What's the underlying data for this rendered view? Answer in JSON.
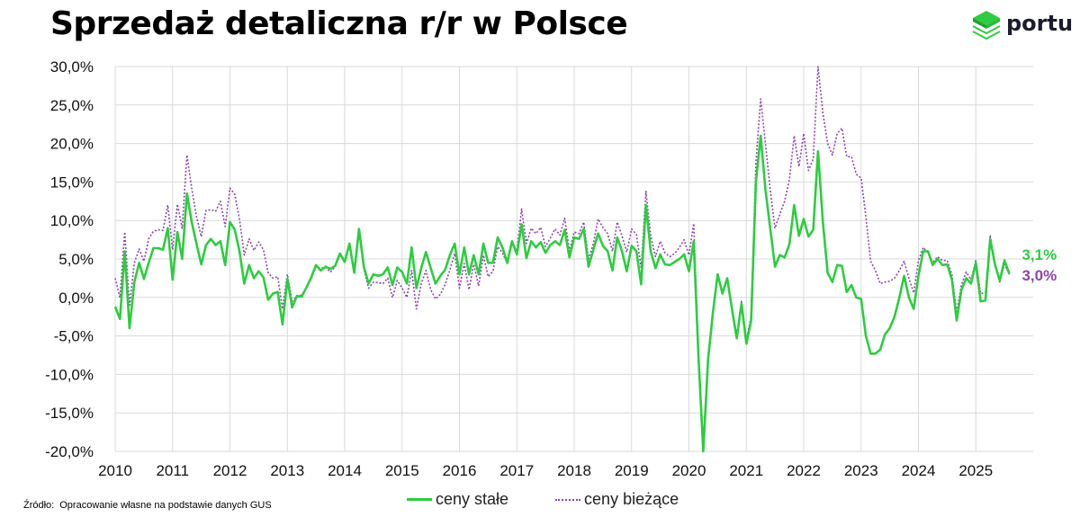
{
  "title": "Sprzedaż detaliczna r/r w Polsce",
  "logo": {
    "text": "portu",
    "icon": "stacked-layers-icon",
    "color": "#2ecc40"
  },
  "source": {
    "label": "Źródło:",
    "text": "Opracowanie własne na podstawie danych GUS"
  },
  "end_labels": {
    "green": "3,1%",
    "purple": "3,0%"
  },
  "colors": {
    "green": "#2ecc40",
    "purple": "#8e44ad",
    "grid": "#d9d9d9"
  },
  "chart_data": {
    "type": "line",
    "title": "Sprzedaż detaliczna r/r w Polsce",
    "xlabel": "",
    "ylabel": "",
    "x_start": "2010-01",
    "x_end": "2025-12",
    "ylim": [
      -20,
      30
    ],
    "yticks": [
      "30,0%",
      "25,0%",
      "20,0%",
      "15,0%",
      "10,0%",
      "5,0%",
      "0,0%",
      "-5,0%",
      "-10,0%",
      "-15,0%",
      "-20,0%"
    ],
    "xticks": [
      "2010",
      "2011",
      "2012",
      "2013",
      "2014",
      "2015",
      "2016",
      "2017",
      "2018",
      "2019",
      "2020",
      "2021",
      "2022",
      "2023",
      "2024",
      "2025"
    ],
    "grid": true,
    "legend_position": "bottom",
    "series": [
      {
        "name": "ceny stałe",
        "style": "solid",
        "color": "#2ecc40",
        "values": [
          -1.2,
          -2.8,
          6.0,
          -4.0,
          2.0,
          4.5,
          2.4,
          4.5,
          6.4,
          6.4,
          6.2,
          9.0,
          2.3,
          8.5,
          5.0,
          13.5,
          9.8,
          7.0,
          4.3,
          6.8,
          7.6,
          6.8,
          7.3,
          4.2,
          9.8,
          8.8,
          6.0,
          1.8,
          4.2,
          2.5,
          3.4,
          2.6,
          -0.3,
          0.5,
          0.7,
          -3.5,
          2.4,
          -1.3,
          0.2,
          0.1,
          1.3,
          2.6,
          4.2,
          3.5,
          4.0,
          3.7,
          4.1,
          5.7,
          4.6,
          7.0,
          3.2,
          8.9,
          4.0,
          1.8,
          3.0,
          2.8,
          3.0,
          3.9,
          1.6,
          3.9,
          3.3,
          1.8,
          6.5,
          1.2,
          3.8,
          5.9,
          3.8,
          1.8,
          2.8,
          3.6,
          5.5,
          7.0,
          3.0,
          6.5,
          3.0,
          5.5,
          3.0,
          7.0,
          4.5,
          4.5,
          7.8,
          6.5,
          4.5,
          7.3,
          5.6,
          9.5,
          5.1,
          7.3,
          6.5,
          7.2,
          5.8,
          6.8,
          7.3,
          6.8,
          8.8,
          5.2,
          7.8,
          7.6,
          8.9,
          4.0,
          6.2,
          8.3,
          6.7,
          6.0,
          3.5,
          7.8,
          6.0,
          3.4,
          6.7,
          6.0,
          1.7,
          12.0,
          6.0,
          3.8,
          5.6,
          4.3,
          4.2,
          4.6,
          5.0,
          5.6,
          3.4,
          7.3,
          -7.7,
          -20.0,
          -8.0,
          -2.0,
          3.0,
          0.5,
          2.5,
          -1.5,
          -5.3,
          -0.8,
          -6.0,
          -3.0,
          15.0,
          21.0,
          14.0,
          9.0,
          4.0,
          5.5,
          5.2,
          6.9,
          12.0,
          8.0,
          10.2,
          7.9,
          8.8,
          19.0,
          9.8,
          3.2,
          2.0,
          4.2,
          4.1,
          0.7,
          1.6,
          0.0,
          -0.2,
          -5.0,
          -7.3,
          -7.3,
          -6.8,
          -4.8,
          -4.0,
          -2.5,
          0.0,
          2.8,
          0.0,
          -1.5,
          2.8,
          6.0,
          6.0,
          4.2,
          5.0,
          4.2,
          4.3,
          2.3,
          -3.0,
          1.0,
          2.5,
          1.8,
          4.5,
          -0.5,
          -0.4,
          7.6,
          4.3,
          2.2,
          4.8,
          3.1
        ]
      },
      {
        "name": "ceny bieżące",
        "style": "dotted",
        "color": "#8e44ad",
        "values": [
          2.5,
          0.0,
          8.5,
          -1.0,
          4.5,
          6.3,
          4.7,
          7.6,
          8.6,
          8.8,
          8.7,
          12.0,
          6.2,
          12.1,
          9.0,
          18.5,
          14.2,
          10.5,
          7.9,
          11.3,
          11.4,
          11.2,
          12.5,
          9.2,
          14.2,
          13.4,
          10.2,
          5.5,
          7.6,
          6.1,
          7.2,
          6.2,
          3.2,
          2.5,
          2.7,
          -1.5,
          3.0,
          -0.5,
          0.2,
          0.3,
          1.3,
          2.4,
          4.0,
          3.8,
          3.9,
          3.3,
          4.0,
          5.5,
          4.8,
          6.8,
          3.2,
          8.3,
          3.7,
          1.2,
          2.0,
          1.9,
          1.8,
          2.5,
          0.0,
          2.2,
          1.2,
          0.0,
          3.5,
          -1.5,
          1.8,
          3.5,
          1.0,
          -0.2,
          0.4,
          1.7,
          3.6,
          5.7,
          1.2,
          4.4,
          1.0,
          4.3,
          1.5,
          5.5,
          2.7,
          3.4,
          6.6,
          5.8,
          4.4,
          7.3,
          6.0,
          11.5,
          7.0,
          9.0,
          8.3,
          9.1,
          6.6,
          7.7,
          8.9,
          8.1,
          10.3,
          6.0,
          8.5,
          8.3,
          9.8,
          5.0,
          7.0,
          10.2,
          9.1,
          8.3,
          6.0,
          9.8,
          8.0,
          5.9,
          8.9,
          8.2,
          3.8,
          13.8,
          8.0,
          5.3,
          7.3,
          5.8,
          5.3,
          5.7,
          6.5,
          7.5,
          5.5,
          9.6,
          -7.3,
          -19.0,
          -7.5,
          -2.0,
          3.0,
          0.5,
          2.3,
          -1.3,
          -5.0,
          -0.5,
          -5.5,
          -2.5,
          17.5,
          25.8,
          20.0,
          14.0,
          9.0,
          10.8,
          12.5,
          15.3,
          21.0,
          17.0,
          21.3,
          16.5,
          18.0,
          30.0,
          24.0,
          20.0,
          18.5,
          21.3,
          22.0,
          18.3,
          18.3,
          16.0,
          15.5,
          10.5,
          4.7,
          3.5,
          1.8,
          2.0,
          2.1,
          2.5,
          3.5,
          4.7,
          2.5,
          0.6,
          4.8,
          6.5,
          5.8,
          4.5,
          5.3,
          4.8,
          4.8,
          3.0,
          -2.0,
          1.7,
          3.3,
          2.3,
          4.8,
          0.5,
          0.6,
          8.0,
          4.2,
          2.0,
          4.3,
          3.0
        ]
      }
    ]
  }
}
